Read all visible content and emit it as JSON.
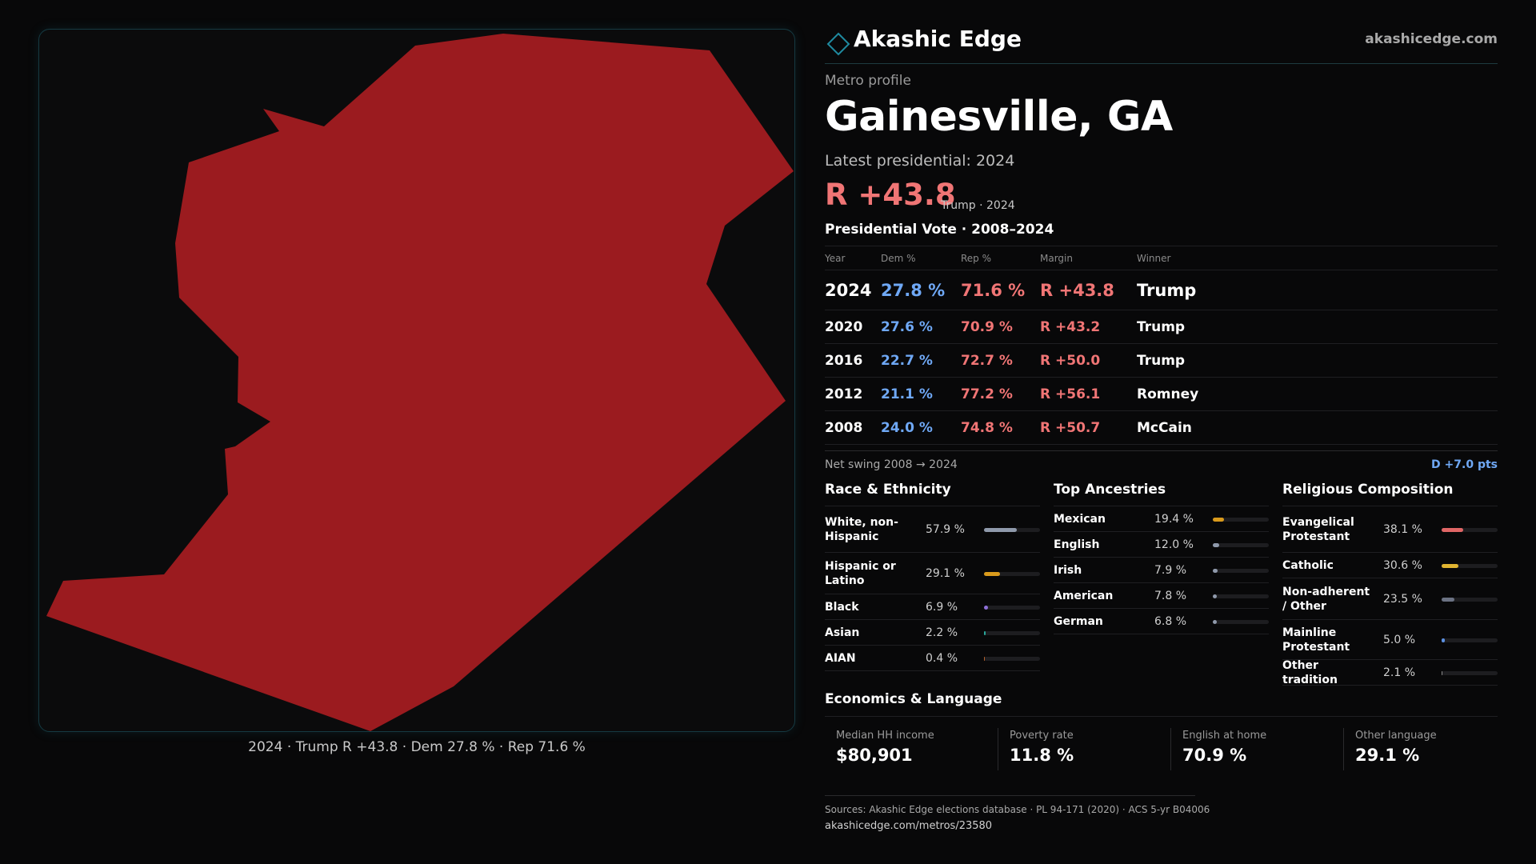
{
  "map": {
    "caption": "2024 · Trump R +43.8 · Dem 27.8 % · Rep 71.6 %",
    "fill_color": "#9b1b1f",
    "frame_color": "#153a42"
  },
  "brand": {
    "name": "Akashic Edge",
    "url": "akashicedge.com",
    "logo_icon": "diamond-outline-icon",
    "accent": "#1f8aa0"
  },
  "profile": {
    "kicker": "Metro profile",
    "name": "Gainesville, GA",
    "latest_label": "Latest presidential: 2024",
    "headline_margin": "R +43.8",
    "headline_sub": "Trump · 2024"
  },
  "vote_table": {
    "title": "Presidential Vote · 2008–2024",
    "headers": [
      "Year",
      "Dem %",
      "Rep %",
      "Margin",
      "Winner"
    ],
    "rows": [
      {
        "year": "2024",
        "dem": "27.8 %",
        "rep": "71.6 %",
        "margin": "R +43.8",
        "winner": "Trump"
      },
      {
        "year": "2020",
        "dem": "27.6 %",
        "rep": "70.9 %",
        "margin": "R +43.2",
        "winner": "Trump"
      },
      {
        "year": "2016",
        "dem": "22.7 %",
        "rep": "72.7 %",
        "margin": "R +50.0",
        "winner": "Trump"
      },
      {
        "year": "2012",
        "dem": "21.1 %",
        "rep": "77.2 %",
        "margin": "R +56.1",
        "winner": "Romney"
      },
      {
        "year": "2008",
        "dem": "24.0 %",
        "rep": "74.8 %",
        "margin": "R +50.7",
        "winner": "McCain"
      }
    ],
    "swing_label": "Net swing 2008 → 2024",
    "swing_value": "D +7.0 pts"
  },
  "colors": {
    "dem": "#6fa8f5",
    "rep": "#f07575"
  },
  "race": {
    "title": "Race & Ethnicity",
    "items": [
      {
        "label": "White, non-Hispanic",
        "value": "57.9 %",
        "pct": 57.9,
        "color": "#8f99ab"
      },
      {
        "label": "Hispanic or Latino",
        "value": "29.1 %",
        "pct": 29.1,
        "color": "#d99a1c"
      },
      {
        "label": "Black",
        "value": "6.9 %",
        "pct": 6.9,
        "color": "#8d6fd8"
      },
      {
        "label": "Asian",
        "value": "2.2 %",
        "pct": 2.2,
        "color": "#2aa79b"
      },
      {
        "label": "AIAN",
        "value": "0.4 %",
        "pct": 0.4,
        "color": "#b5612c"
      }
    ]
  },
  "ancestry": {
    "title": "Top Ancestries",
    "items": [
      {
        "label": "Mexican",
        "value": "19.4 %",
        "pct": 19.4,
        "color": "#d99a1c"
      },
      {
        "label": "English",
        "value": "12.0 %",
        "pct": 12.0,
        "color": "#8f99ab"
      },
      {
        "label": "Irish",
        "value": "7.9 %",
        "pct": 7.9,
        "color": "#8f99ab"
      },
      {
        "label": "American",
        "value": "7.8 %",
        "pct": 7.8,
        "color": "#8f99ab"
      },
      {
        "label": "German",
        "value": "6.8 %",
        "pct": 6.8,
        "color": "#8f99ab"
      }
    ]
  },
  "religion": {
    "title": "Religious Composition",
    "items": [
      {
        "label": "Evangelical Protestant",
        "value": "38.1 %",
        "pct": 38.1,
        "color": "#e06666"
      },
      {
        "label": "Catholic",
        "value": "30.6 %",
        "pct": 30.6,
        "color": "#e0b431"
      },
      {
        "label": "Non-adherent / Other",
        "value": "23.5 %",
        "pct": 23.5,
        "color": "#6b7283"
      },
      {
        "label": "Mainline Protestant",
        "value": "5.0 %",
        "pct": 5.0,
        "color": "#5b8fe0"
      },
      {
        "label": "Other tradition",
        "value": "2.1 %",
        "pct": 2.1,
        "color": "#8a8a8a"
      }
    ]
  },
  "economics": {
    "title": "Economics & Language",
    "cells": [
      {
        "label": "Median HH income",
        "value": "$80,901"
      },
      {
        "label": "Poverty rate",
        "value": "11.8 %"
      },
      {
        "label": "English at home",
        "value": "70.9 %"
      },
      {
        "label": "Other language",
        "value": "29.1 %"
      }
    ]
  },
  "footer": {
    "sources": "Sources: Akashic Edge elections database · PL 94-171 (2020) · ACS 5-yr B04006",
    "url": "akashicedge.com/metros/23580"
  }
}
